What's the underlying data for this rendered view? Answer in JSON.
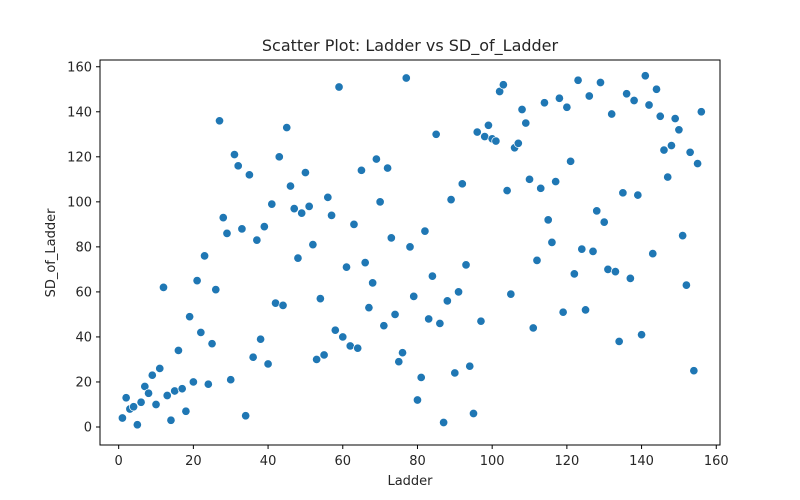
{
  "chart_data": {
    "type": "scatter",
    "title": "Scatter Plot: Ladder vs SD_of_Ladder",
    "xlabel": "Ladder",
    "ylabel": "SD_of_Ladder",
    "xlim": [
      -5,
      161
    ],
    "ylim": [
      -8,
      163
    ],
    "xticks": [
      0,
      20,
      40,
      60,
      80,
      100,
      120,
      140,
      160
    ],
    "yticks": [
      0,
      20,
      40,
      60,
      80,
      100,
      120,
      140,
      160
    ],
    "grid": false,
    "color": "#1f77b4",
    "points": [
      [
        1,
        4
      ],
      [
        2,
        13
      ],
      [
        3,
        8
      ],
      [
        4,
        9
      ],
      [
        5,
        1
      ],
      [
        6,
        11
      ],
      [
        7,
        18
      ],
      [
        8,
        15
      ],
      [
        9,
        23
      ],
      [
        10,
        10
      ],
      [
        11,
        26
      ],
      [
        12,
        62
      ],
      [
        13,
        14
      ],
      [
        14,
        3
      ],
      [
        15,
        16
      ],
      [
        16,
        34
      ],
      [
        17,
        17
      ],
      [
        18,
        7
      ],
      [
        19,
        49
      ],
      [
        20,
        20
      ],
      [
        21,
        65
      ],
      [
        22,
        42
      ],
      [
        23,
        76
      ],
      [
        24,
        19
      ],
      [
        25,
        37
      ],
      [
        26,
        61
      ],
      [
        27,
        136
      ],
      [
        28,
        93
      ],
      [
        29,
        86
      ],
      [
        30,
        21
      ],
      [
        31,
        121
      ],
      [
        32,
        116
      ],
      [
        33,
        88
      ],
      [
        34,
        5
      ],
      [
        35,
        112
      ],
      [
        36,
        31
      ],
      [
        37,
        83
      ],
      [
        38,
        39
      ],
      [
        39,
        89
      ],
      [
        40,
        28
      ],
      [
        41,
        99
      ],
      [
        42,
        55
      ],
      [
        43,
        120
      ],
      [
        44,
        54
      ],
      [
        45,
        133
      ],
      [
        46,
        107
      ],
      [
        47,
        97
      ],
      [
        48,
        75
      ],
      [
        49,
        95
      ],
      [
        50,
        113
      ],
      [
        51,
        98
      ],
      [
        52,
        81
      ],
      [
        53,
        30
      ],
      [
        54,
        57
      ],
      [
        55,
        32
      ],
      [
        56,
        102
      ],
      [
        57,
        94
      ],
      [
        58,
        43
      ],
      [
        59,
        151
      ],
      [
        60,
        40
      ],
      [
        61,
        71
      ],
      [
        62,
        36
      ],
      [
        63,
        90
      ],
      [
        64,
        35
      ],
      [
        65,
        114
      ],
      [
        66,
        73
      ],
      [
        67,
        53
      ],
      [
        68,
        64
      ],
      [
        69,
        119
      ],
      [
        70,
        100
      ],
      [
        71,
        45
      ],
      [
        72,
        115
      ],
      [
        73,
        84
      ],
      [
        74,
        50
      ],
      [
        75,
        29
      ],
      [
        76,
        33
      ],
      [
        77,
        155
      ],
      [
        78,
        80
      ],
      [
        79,
        58
      ],
      [
        80,
        12
      ],
      [
        81,
        22
      ],
      [
        82,
        87
      ],
      [
        83,
        48
      ],
      [
        84,
        67
      ],
      [
        85,
        130
      ],
      [
        86,
        46
      ],
      [
        87,
        2
      ],
      [
        88,
        56
      ],
      [
        89,
        101
      ],
      [
        90,
        24
      ],
      [
        91,
        60
      ],
      [
        92,
        108
      ],
      [
        93,
        72
      ],
      [
        94,
        27
      ],
      [
        95,
        6
      ],
      [
        96,
        131
      ],
      [
        97,
        47
      ],
      [
        98,
        129
      ],
      [
        99,
        134
      ],
      [
        100,
        128
      ],
      [
        101,
        127
      ],
      [
        102,
        149
      ],
      [
        103,
        152
      ],
      [
        104,
        105
      ],
      [
        105,
        59
      ],
      [
        106,
        124
      ],
      [
        107,
        126
      ],
      [
        108,
        141
      ],
      [
        109,
        135
      ],
      [
        110,
        110
      ],
      [
        111,
        44
      ],
      [
        112,
        74
      ],
      [
        113,
        106
      ],
      [
        114,
        144
      ],
      [
        115,
        92
      ],
      [
        116,
        82
      ],
      [
        117,
        109
      ],
      [
        118,
        146
      ],
      [
        119,
        51
      ],
      [
        120,
        142
      ],
      [
        121,
        118
      ],
      [
        122,
        68
      ],
      [
        123,
        154
      ],
      [
        124,
        79
      ],
      [
        125,
        52
      ],
      [
        126,
        147
      ],
      [
        127,
        78
      ],
      [
        128,
        96
      ],
      [
        129,
        153
      ],
      [
        130,
        91
      ],
      [
        131,
        70
      ],
      [
        132,
        139
      ],
      [
        133,
        69
      ],
      [
        134,
        38
      ],
      [
        135,
        104
      ],
      [
        136,
        148
      ],
      [
        137,
        66
      ],
      [
        138,
        145
      ],
      [
        139,
        103
      ],
      [
        140,
        41
      ],
      [
        141,
        156
      ],
      [
        142,
        143
      ],
      [
        143,
        77
      ],
      [
        144,
        150
      ],
      [
        145,
        138
      ],
      [
        146,
        123
      ],
      [
        147,
        111
      ],
      [
        148,
        125
      ],
      [
        149,
        137
      ],
      [
        150,
        132
      ],
      [
        151,
        85
      ],
      [
        152,
        63
      ],
      [
        153,
        122
      ],
      [
        154,
        25
      ],
      [
        155,
        117
      ],
      [
        156,
        140
      ]
    ]
  }
}
